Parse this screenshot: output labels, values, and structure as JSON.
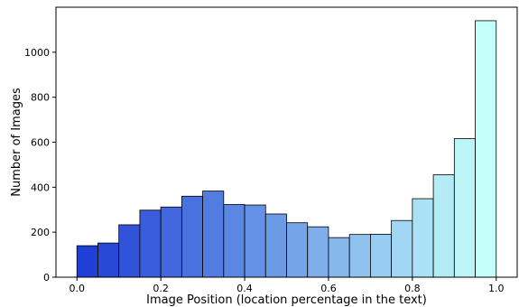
{
  "chart_data": {
    "type": "bar",
    "xlabel": "Image Position (location percentage in the text)",
    "ylabel": "Number of Images",
    "xlim": [
      -0.05,
      1.05
    ],
    "ylim": [
      0,
      1200
    ],
    "x_ticks": [
      0.0,
      0.2,
      0.4,
      0.6,
      0.8,
      1.0
    ],
    "x_tick_labels": [
      "0.0",
      "0.2",
      "0.4",
      "0.6",
      "0.8",
      "1.0"
    ],
    "y_ticks": [
      0,
      200,
      400,
      600,
      800,
      1000
    ],
    "y_tick_labels": [
      "0",
      "200",
      "400",
      "600",
      "800",
      "1000"
    ],
    "bin_edges": [
      0.0,
      0.05,
      0.1,
      0.15,
      0.2,
      0.25,
      0.3,
      0.35,
      0.4,
      0.45,
      0.5,
      0.55,
      0.6,
      0.65,
      0.7,
      0.75,
      0.8,
      0.85,
      0.9,
      0.95,
      1.0
    ],
    "values": [
      140,
      152,
      233,
      298,
      312,
      360,
      383,
      323,
      321,
      281,
      242,
      224,
      176,
      190,
      191,
      252,
      349,
      455,
      616,
      1140
    ],
    "grid": false,
    "color_gradient": [
      "#1f3fd6",
      "#c4fffa"
    ],
    "edge_color": "#000000"
  }
}
